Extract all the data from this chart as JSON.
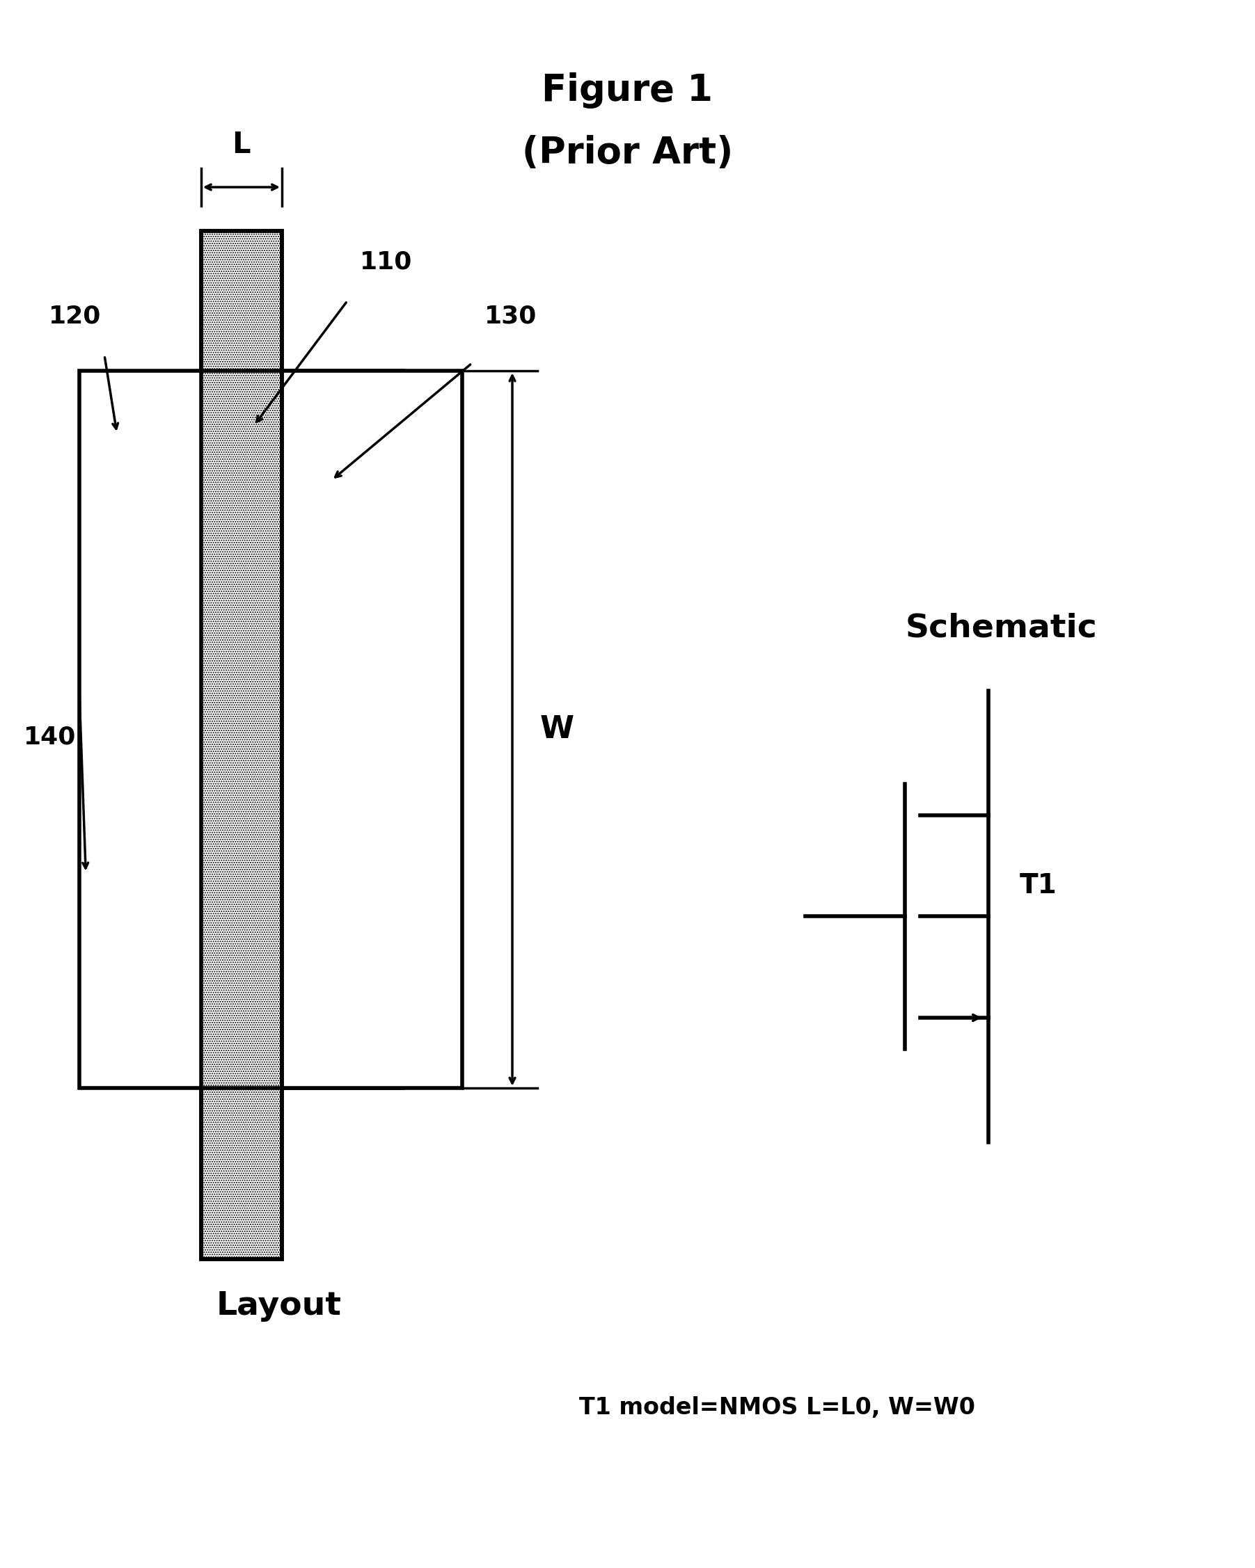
{
  "title_line1": "Figure 1",
  "title_line2": "(Prior Art)",
  "title_fontsize": 36,
  "bg_color": "#ffffff",
  "layout_label": "Layout",
  "schematic_label": "Schematic",
  "bottom_label": "T1 model=NMOS L=L0, W=W0",
  "label_120": "120",
  "label_110": "110",
  "label_130": "130",
  "label_140": "140",
  "label_L": "L",
  "label_W": "W",
  "label_T1": "T1"
}
